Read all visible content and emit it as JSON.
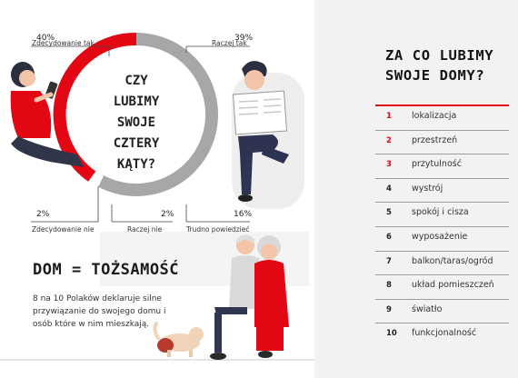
{
  "left": {
    "donut_center_lines": [
      "CZY",
      "LUBIMY",
      "SWOJE",
      "CZTERY",
      "KĄTY?"
    ],
    "stats": [
      {
        "pct": "40%",
        "label": "Zdecydowanie tak"
      },
      {
        "pct": "39%",
        "label": "Raczej tak"
      },
      {
        "pct": "2%",
        "label": "Zdecydowanie nie"
      },
      {
        "pct": "2%",
        "label": "Raczej nie"
      },
      {
        "pct": "16%",
        "label": "Trudno powiedzieć"
      }
    ],
    "dom_title": "DOM = TOŻSAMOŚĆ",
    "dom_text": "8 na 10 Polaków deklaruje silne przywiązanie do swojego domu i osób które w nim mieszkają."
  },
  "right": {
    "title": "ZA CO LUBIMY SWOJE DOMY?",
    "items": [
      {
        "num": "1",
        "label": "lokalizacja"
      },
      {
        "num": "2",
        "label": "przestrzeń"
      },
      {
        "num": "3",
        "label": "przytulność"
      },
      {
        "num": "4",
        "label": "wystrój"
      },
      {
        "num": "5",
        "label": "spokój i cisza"
      },
      {
        "num": "6",
        "label": "wyposażenie"
      },
      {
        "num": "7",
        "label": "balkon/taras/ogród"
      },
      {
        "num": "8",
        "label": "układ pomieszczeń"
      },
      {
        "num": "9",
        "label": "światło"
      },
      {
        "num": "10",
        "label": "funkcjonalność"
      }
    ],
    "highlight_count": 3
  },
  "colors": {
    "accent": "#e30613",
    "gray": "#a7a7a7",
    "panel": "#f2f2f2"
  }
}
